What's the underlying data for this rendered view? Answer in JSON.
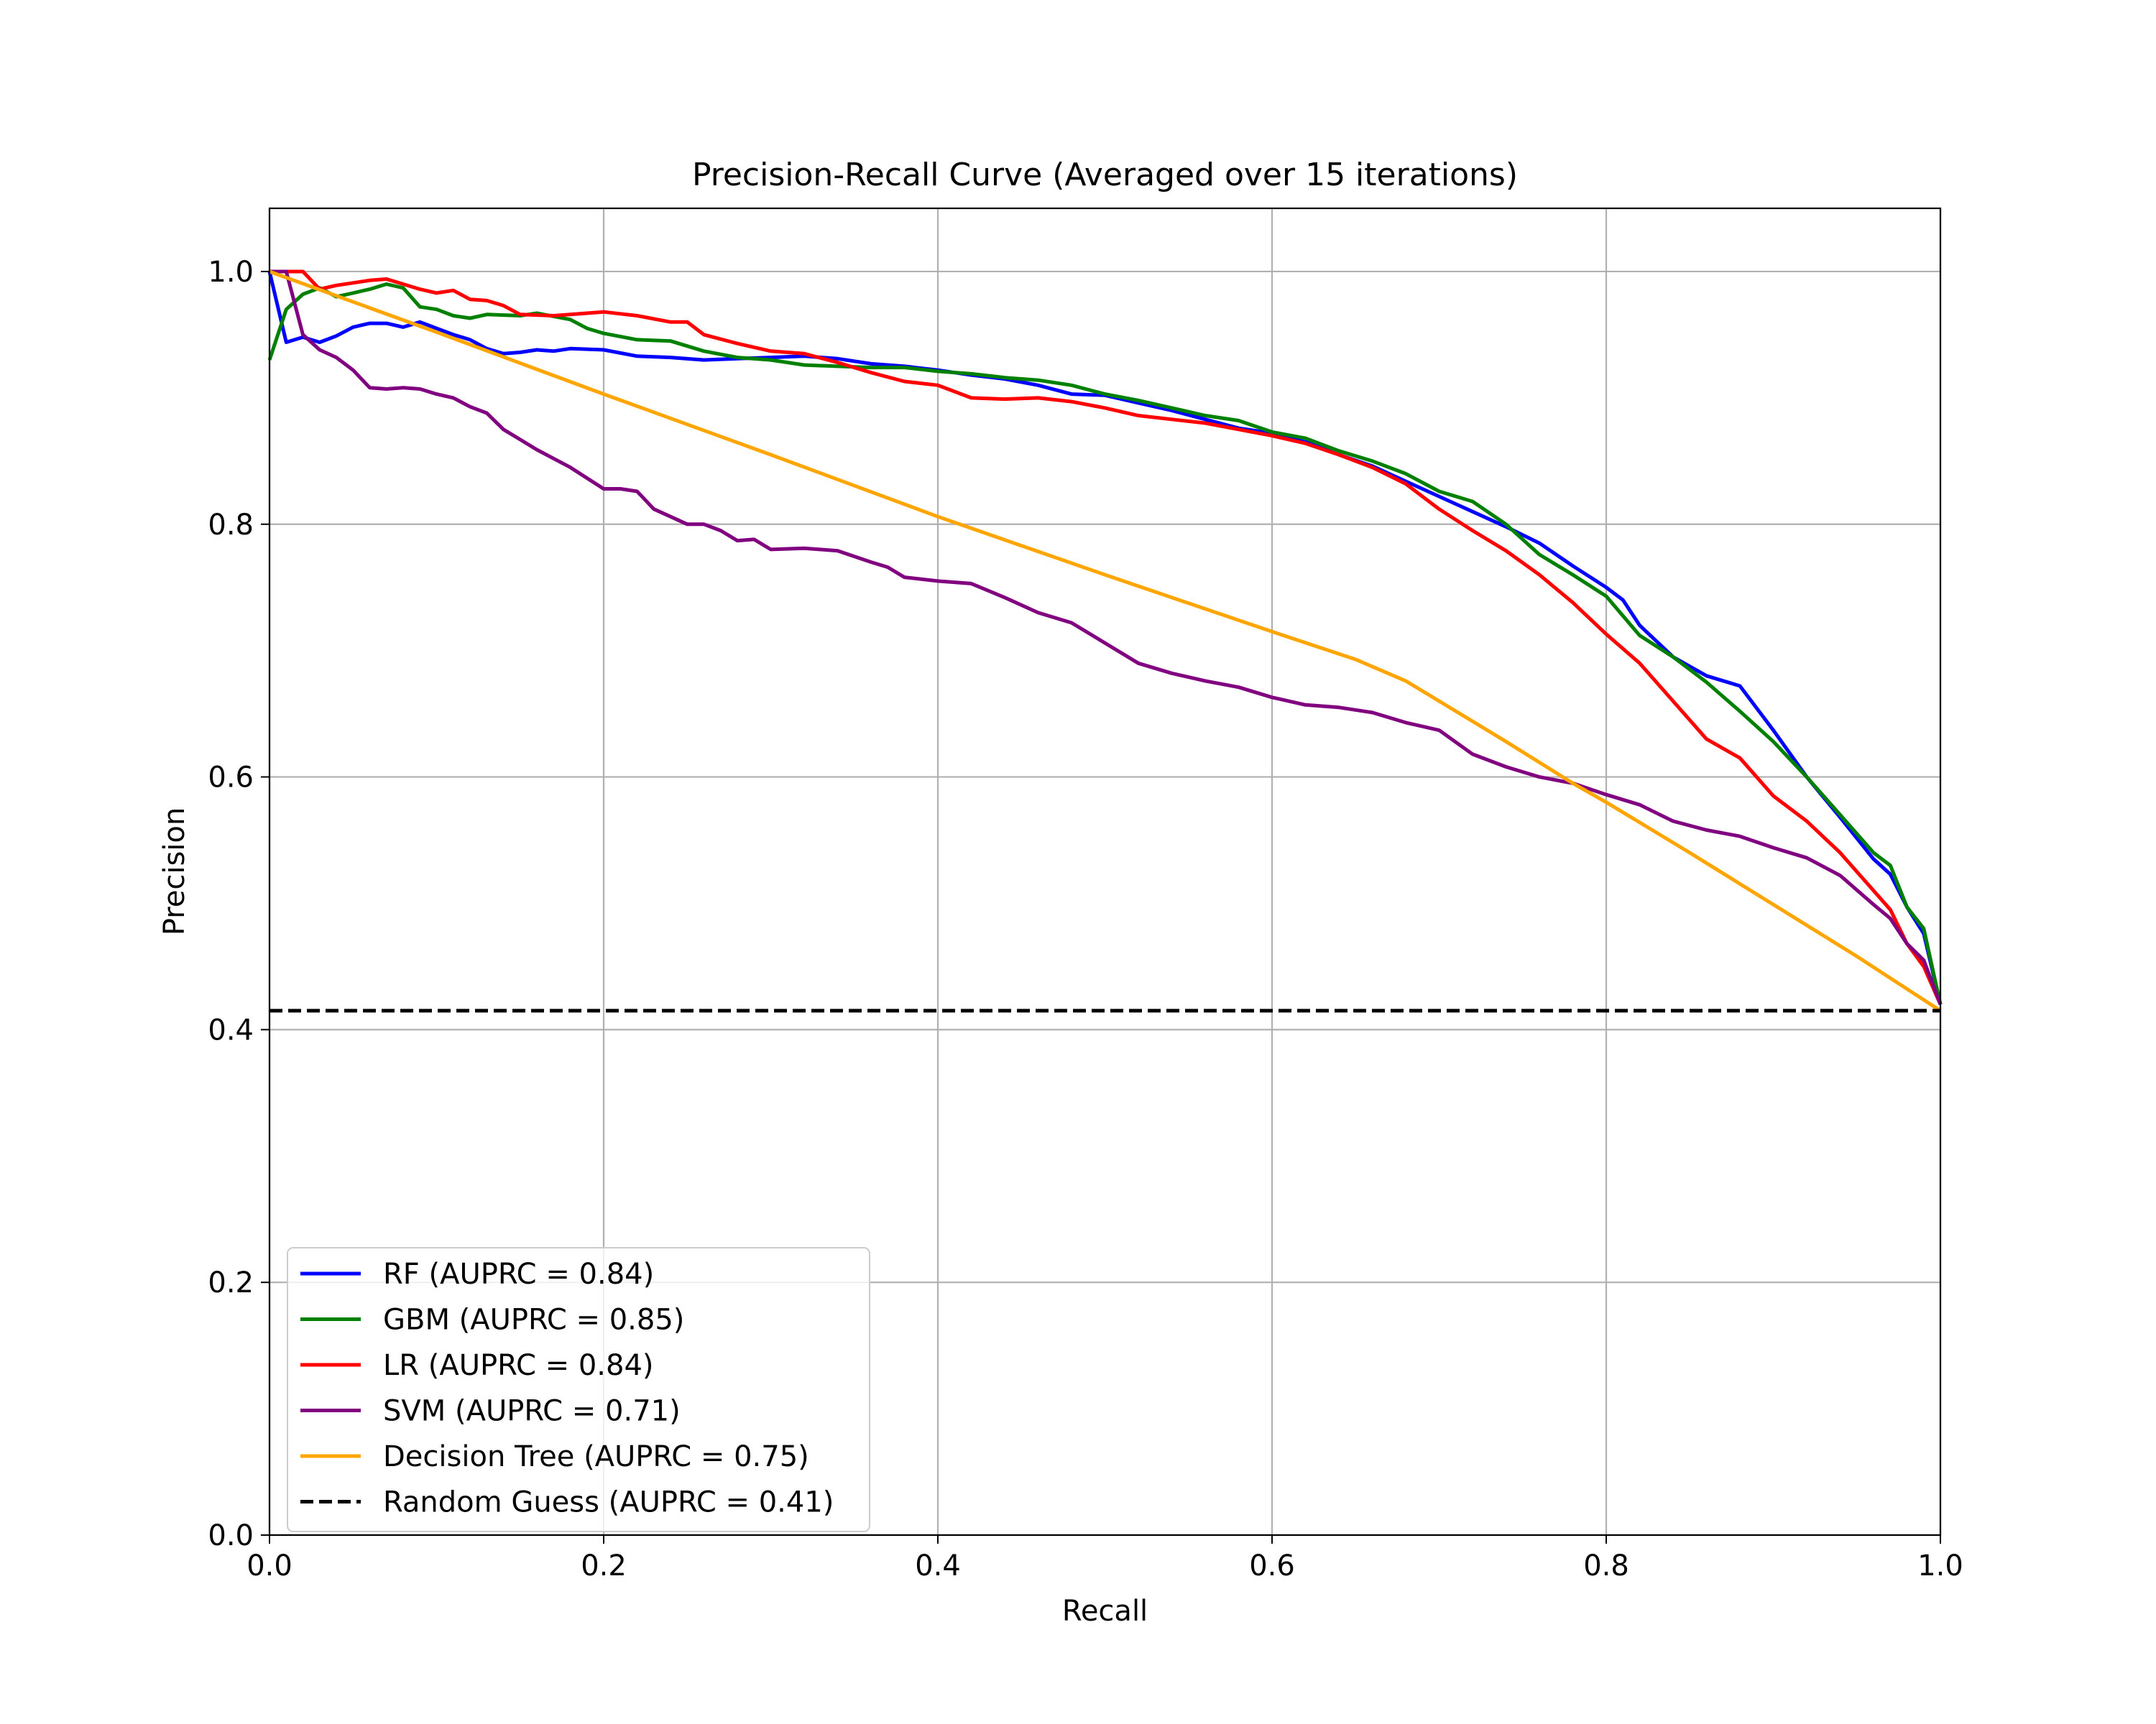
{
  "chart_data": {
    "type": "line",
    "title": "Precision-Recall Curve (Averaged over 15 iterations)",
    "xlabel": "Recall",
    "ylabel": "Precision",
    "xlim": [
      0.0,
      1.0
    ],
    "ylim": [
      0.0,
      1.05
    ],
    "xticks": [
      "0.0",
      "0.2",
      "0.4",
      "0.6",
      "0.8",
      "1.0"
    ],
    "yticks": [
      "0.0",
      "0.2",
      "0.4",
      "0.6",
      "0.8",
      "1.0"
    ],
    "grid": true,
    "legend_position": "lower-left",
    "series": [
      {
        "name": "RF (AUPRC = 0.84)",
        "color": "#0000ff",
        "style": "solid",
        "points": [
          [
            0.0,
            1.0
          ],
          [
            0.01,
            0.944
          ],
          [
            0.02,
            0.948
          ],
          [
            0.03,
            0.944
          ],
          [
            0.04,
            0.949
          ],
          [
            0.05,
            0.956
          ],
          [
            0.06,
            0.959
          ],
          [
            0.07,
            0.959
          ],
          [
            0.08,
            0.956
          ],
          [
            0.09,
            0.96
          ],
          [
            0.1,
            0.955
          ],
          [
            0.11,
            0.95
          ],
          [
            0.12,
            0.946
          ],
          [
            0.13,
            0.939
          ],
          [
            0.14,
            0.935
          ],
          [
            0.15,
            0.936
          ],
          [
            0.16,
            0.938
          ],
          [
            0.17,
            0.937
          ],
          [
            0.18,
            0.939
          ],
          [
            0.2,
            0.938
          ],
          [
            0.22,
            0.933
          ],
          [
            0.24,
            0.932
          ],
          [
            0.26,
            0.93
          ],
          [
            0.28,
            0.931
          ],
          [
            0.3,
            0.932
          ],
          [
            0.32,
            0.933
          ],
          [
            0.34,
            0.931
          ],
          [
            0.36,
            0.927
          ],
          [
            0.38,
            0.925
          ],
          [
            0.4,
            0.922
          ],
          [
            0.42,
            0.918
          ],
          [
            0.44,
            0.915
          ],
          [
            0.46,
            0.91
          ],
          [
            0.48,
            0.903
          ],
          [
            0.5,
            0.902
          ],
          [
            0.52,
            0.896
          ],
          [
            0.54,
            0.89
          ],
          [
            0.56,
            0.883
          ],
          [
            0.58,
            0.876
          ],
          [
            0.6,
            0.872
          ],
          [
            0.62,
            0.865
          ],
          [
            0.64,
            0.855
          ],
          [
            0.66,
            0.846
          ],
          [
            0.68,
            0.834
          ],
          [
            0.7,
            0.822
          ],
          [
            0.72,
            0.81
          ],
          [
            0.74,
            0.798
          ],
          [
            0.76,
            0.785
          ],
          [
            0.78,
            0.767
          ],
          [
            0.8,
            0.75
          ],
          [
            0.81,
            0.74
          ],
          [
            0.82,
            0.72
          ],
          [
            0.84,
            0.695
          ],
          [
            0.86,
            0.68
          ],
          [
            0.88,
            0.672
          ],
          [
            0.9,
            0.637
          ],
          [
            0.92,
            0.6
          ],
          [
            0.94,
            0.568
          ],
          [
            0.96,
            0.535
          ],
          [
            0.97,
            0.523
          ],
          [
            0.98,
            0.497
          ],
          [
            0.99,
            0.476
          ],
          [
            1.0,
            0.42
          ]
        ]
      },
      {
        "name": "GBM (AUPRC = 0.85)",
        "color": "#008000",
        "style": "solid",
        "points": [
          [
            0.0,
            0.93
          ],
          [
            0.01,
            0.97
          ],
          [
            0.02,
            0.982
          ],
          [
            0.03,
            0.987
          ],
          [
            0.04,
            0.98
          ],
          [
            0.05,
            0.983
          ],
          [
            0.06,
            0.986
          ],
          [
            0.07,
            0.99
          ],
          [
            0.08,
            0.987
          ],
          [
            0.09,
            0.972
          ],
          [
            0.1,
            0.97
          ],
          [
            0.11,
            0.965
          ],
          [
            0.12,
            0.963
          ],
          [
            0.13,
            0.966
          ],
          [
            0.15,
            0.965
          ],
          [
            0.16,
            0.967
          ],
          [
            0.18,
            0.962
          ],
          [
            0.19,
            0.955
          ],
          [
            0.2,
            0.951
          ],
          [
            0.22,
            0.946
          ],
          [
            0.24,
            0.945
          ],
          [
            0.26,
            0.937
          ],
          [
            0.28,
            0.932
          ],
          [
            0.3,
            0.93
          ],
          [
            0.32,
            0.926
          ],
          [
            0.34,
            0.925
          ],
          [
            0.36,
            0.924
          ],
          [
            0.38,
            0.924
          ],
          [
            0.4,
            0.921
          ],
          [
            0.42,
            0.919
          ],
          [
            0.44,
            0.916
          ],
          [
            0.46,
            0.914
          ],
          [
            0.48,
            0.91
          ],
          [
            0.5,
            0.903
          ],
          [
            0.52,
            0.898
          ],
          [
            0.54,
            0.892
          ],
          [
            0.56,
            0.886
          ],
          [
            0.58,
            0.882
          ],
          [
            0.6,
            0.873
          ],
          [
            0.62,
            0.868
          ],
          [
            0.64,
            0.858
          ],
          [
            0.66,
            0.85
          ],
          [
            0.68,
            0.84
          ],
          [
            0.7,
            0.826
          ],
          [
            0.72,
            0.818
          ],
          [
            0.74,
            0.8
          ],
          [
            0.76,
            0.776
          ],
          [
            0.78,
            0.76
          ],
          [
            0.8,
            0.743
          ],
          [
            0.82,
            0.712
          ],
          [
            0.84,
            0.695
          ],
          [
            0.86,
            0.675
          ],
          [
            0.88,
            0.652
          ],
          [
            0.9,
            0.628
          ],
          [
            0.92,
            0.6
          ],
          [
            0.94,
            0.57
          ],
          [
            0.96,
            0.54
          ],
          [
            0.97,
            0.53
          ],
          [
            0.98,
            0.497
          ],
          [
            0.99,
            0.48
          ],
          [
            1.0,
            0.42
          ]
        ]
      },
      {
        "name": "LR (AUPRC = 0.84)",
        "color": "#ff0000",
        "style": "solid",
        "points": [
          [
            0.0,
            1.0
          ],
          [
            0.02,
            1.0
          ],
          [
            0.03,
            0.986
          ],
          [
            0.04,
            0.989
          ],
          [
            0.05,
            0.991
          ],
          [
            0.06,
            0.993
          ],
          [
            0.07,
            0.994
          ],
          [
            0.08,
            0.99
          ],
          [
            0.09,
            0.986
          ],
          [
            0.1,
            0.983
          ],
          [
            0.11,
            0.985
          ],
          [
            0.12,
            0.978
          ],
          [
            0.13,
            0.977
          ],
          [
            0.14,
            0.973
          ],
          [
            0.15,
            0.966
          ],
          [
            0.17,
            0.965
          ],
          [
            0.18,
            0.966
          ],
          [
            0.2,
            0.968
          ],
          [
            0.22,
            0.965
          ],
          [
            0.24,
            0.96
          ],
          [
            0.25,
            0.96
          ],
          [
            0.26,
            0.95
          ],
          [
            0.28,
            0.943
          ],
          [
            0.3,
            0.937
          ],
          [
            0.32,
            0.935
          ],
          [
            0.34,
            0.928
          ],
          [
            0.36,
            0.92
          ],
          [
            0.38,
            0.913
          ],
          [
            0.4,
            0.91
          ],
          [
            0.42,
            0.9
          ],
          [
            0.44,
            0.899
          ],
          [
            0.46,
            0.9
          ],
          [
            0.48,
            0.897
          ],
          [
            0.5,
            0.892
          ],
          [
            0.52,
            0.886
          ],
          [
            0.54,
            0.883
          ],
          [
            0.56,
            0.88
          ],
          [
            0.58,
            0.875
          ],
          [
            0.6,
            0.87
          ],
          [
            0.62,
            0.864
          ],
          [
            0.64,
            0.855
          ],
          [
            0.66,
            0.845
          ],
          [
            0.68,
            0.832
          ],
          [
            0.7,
            0.812
          ],
          [
            0.72,
            0.795
          ],
          [
            0.74,
            0.779
          ],
          [
            0.76,
            0.76
          ],
          [
            0.78,
            0.738
          ],
          [
            0.8,
            0.713
          ],
          [
            0.82,
            0.69
          ],
          [
            0.84,
            0.66
          ],
          [
            0.86,
            0.63
          ],
          [
            0.88,
            0.615
          ],
          [
            0.9,
            0.585
          ],
          [
            0.92,
            0.565
          ],
          [
            0.94,
            0.54
          ],
          [
            0.96,
            0.51
          ],
          [
            0.97,
            0.495
          ],
          [
            0.98,
            0.468
          ],
          [
            0.99,
            0.45
          ],
          [
            1.0,
            0.42
          ]
        ]
      },
      {
        "name": "SVM (AUPRC = 0.71)",
        "color": "#800080",
        "style": "solid",
        "points": [
          [
            0.0,
            1.0
          ],
          [
            0.01,
            1.0
          ],
          [
            0.02,
            0.95
          ],
          [
            0.03,
            0.938
          ],
          [
            0.04,
            0.932
          ],
          [
            0.05,
            0.922
          ],
          [
            0.06,
            0.908
          ],
          [
            0.07,
            0.907
          ],
          [
            0.08,
            0.908
          ],
          [
            0.09,
            0.907
          ],
          [
            0.1,
            0.903
          ],
          [
            0.11,
            0.9
          ],
          [
            0.12,
            0.893
          ],
          [
            0.13,
            0.888
          ],
          [
            0.14,
            0.875
          ],
          [
            0.15,
            0.867
          ],
          [
            0.16,
            0.859
          ],
          [
            0.18,
            0.845
          ],
          [
            0.2,
            0.828
          ],
          [
            0.21,
            0.828
          ],
          [
            0.22,
            0.826
          ],
          [
            0.23,
            0.812
          ],
          [
            0.24,
            0.806
          ],
          [
            0.25,
            0.8
          ],
          [
            0.26,
            0.8
          ],
          [
            0.27,
            0.795
          ],
          [
            0.28,
            0.787
          ],
          [
            0.29,
            0.788
          ],
          [
            0.3,
            0.78
          ],
          [
            0.32,
            0.781
          ],
          [
            0.34,
            0.779
          ],
          [
            0.36,
            0.77
          ],
          [
            0.37,
            0.766
          ],
          [
            0.38,
            0.758
          ],
          [
            0.4,
            0.755
          ],
          [
            0.42,
            0.753
          ],
          [
            0.44,
            0.742
          ],
          [
            0.46,
            0.73
          ],
          [
            0.48,
            0.722
          ],
          [
            0.5,
            0.706
          ],
          [
            0.52,
            0.69
          ],
          [
            0.54,
            0.682
          ],
          [
            0.56,
            0.676
          ],
          [
            0.58,
            0.671
          ],
          [
            0.6,
            0.663
          ],
          [
            0.62,
            0.657
          ],
          [
            0.64,
            0.655
          ],
          [
            0.66,
            0.651
          ],
          [
            0.68,
            0.643
          ],
          [
            0.7,
            0.637
          ],
          [
            0.72,
            0.618
          ],
          [
            0.74,
            0.608
          ],
          [
            0.76,
            0.6
          ],
          [
            0.78,
            0.595
          ],
          [
            0.8,
            0.586
          ],
          [
            0.82,
            0.578
          ],
          [
            0.84,
            0.565
          ],
          [
            0.86,
            0.558
          ],
          [
            0.88,
            0.553
          ],
          [
            0.9,
            0.544
          ],
          [
            0.92,
            0.536
          ],
          [
            0.94,
            0.522
          ],
          [
            0.96,
            0.499
          ],
          [
            0.97,
            0.488
          ],
          [
            0.98,
            0.468
          ],
          [
            0.99,
            0.455
          ],
          [
            1.0,
            0.42
          ]
        ]
      },
      {
        "name": "Decision Tree (AUPRC = 0.75)",
        "color": "#ffa500",
        "style": "solid",
        "points": [
          [
            0.0,
            1.0
          ],
          [
            0.1,
            0.952
          ],
          [
            0.2,
            0.903
          ],
          [
            0.3,
            0.855
          ],
          [
            0.4,
            0.806
          ],
          [
            0.5,
            0.76
          ],
          [
            0.6,
            0.715
          ],
          [
            0.65,
            0.693
          ],
          [
            0.68,
            0.676
          ],
          [
            0.7,
            0.66
          ],
          [
            0.74,
            0.628
          ],
          [
            0.78,
            0.595
          ],
          [
            0.8,
            0.58
          ],
          [
            0.85,
            0.54
          ],
          [
            0.9,
            0.499
          ],
          [
            0.95,
            0.458
          ],
          [
            1.0,
            0.415
          ]
        ]
      },
      {
        "name": "Random Guess (AUPRC = 0.41)",
        "color": "#000000",
        "style": "dashed",
        "points": [
          [
            0.0,
            0.415
          ],
          [
            1.0,
            0.415
          ]
        ]
      }
    ]
  }
}
